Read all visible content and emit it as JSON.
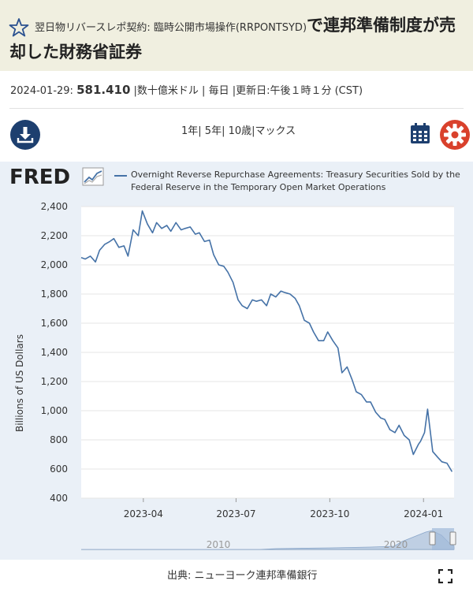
{
  "header": {
    "title_small": "翌日物リバースレポ契約: 臨時公開市場操作(RRPONTSYD)",
    "title_big_1": "で連邦準備制度が売",
    "title_big_2": "却した財務省証券"
  },
  "meta": {
    "date": "2024-01-29:",
    "value": "581.410",
    "rest": "|数十億米ドル | 毎日 |更新日:午後１時１分 (CST)"
  },
  "ranges": [
    "1年",
    "5年",
    "10歳",
    "マックス"
  ],
  "legend_label": "Overnight Reverse Repurchase Agreements: Treasury Securities Sold by the Federal Reserve in the Temporary Open Market Operations",
  "brand": "FRED",
  "source": "出典: ニューヨーク連邦準備銀行",
  "colors": {
    "series": "#4572a7",
    "header_bg": "#f0efe0",
    "brand_blue": "#1d3f6f",
    "accent_red": "#d9412c"
  },
  "icons": [
    "star-icon",
    "download-icon",
    "calendar-icon",
    "gear-icon",
    "fullscreen-icon"
  ],
  "chart_data": {
    "type": "line",
    "ylabel": "Billions of US Dollars",
    "ylim": [
      400,
      2400
    ],
    "yticks": [
      "2,400",
      "2,200",
      "2,000",
      "1,800",
      "1,600",
      "1,400",
      "1,200",
      "1,000",
      "800",
      "600",
      "400"
    ],
    "xticks": [
      "2023-04",
      "2023-07",
      "2023-10",
      "2024-01"
    ],
    "navigator_labels": [
      "2010",
      "2020"
    ],
    "series": [
      {
        "name": "Overnight Reverse Repurchase Agreements: Treasury Securities Sold by the Federal Reserve in the Temporary Open Market Operations",
        "x": [
          "2023-01-30",
          "2023-02-03",
          "2023-02-08",
          "2023-02-13",
          "2023-02-17",
          "2023-02-22",
          "2023-02-27",
          "2023-03-03",
          "2023-03-08",
          "2023-03-13",
          "2023-03-17",
          "2023-03-22",
          "2023-03-27",
          "2023-03-31",
          "2023-04-05",
          "2023-04-10",
          "2023-04-14",
          "2023-04-19",
          "2023-04-24",
          "2023-04-28",
          "2023-05-03",
          "2023-05-08",
          "2023-05-12",
          "2023-05-17",
          "2023-05-22",
          "2023-05-26",
          "2023-05-31",
          "2023-06-05",
          "2023-06-09",
          "2023-06-14",
          "2023-06-19",
          "2023-06-23",
          "2023-06-28",
          "2023-07-03",
          "2023-07-07",
          "2023-07-12",
          "2023-07-17",
          "2023-07-21",
          "2023-07-26",
          "2023-07-31",
          "2023-08-04",
          "2023-08-09",
          "2023-08-14",
          "2023-08-18",
          "2023-08-23",
          "2023-08-28",
          "2023-09-01",
          "2023-09-06",
          "2023-09-11",
          "2023-09-15",
          "2023-09-20",
          "2023-09-25",
          "2023-09-29",
          "2023-10-04",
          "2023-10-09",
          "2023-10-13",
          "2023-10-18",
          "2023-10-23",
          "2023-10-27",
          "2023-11-01",
          "2023-11-06",
          "2023-11-10",
          "2023-11-15",
          "2023-11-20",
          "2023-11-24",
          "2023-11-29",
          "2023-12-04",
          "2023-12-08",
          "2023-12-13",
          "2023-12-18",
          "2023-12-22",
          "2023-12-27",
          "2023-12-29",
          "2024-01-02",
          "2024-01-05",
          "2024-01-10",
          "2024-01-15",
          "2024-01-19",
          "2024-01-24",
          "2024-01-29"
        ],
        "values": [
          2050,
          2040,
          2060,
          2020,
          2100,
          2140,
          2160,
          2180,
          2120,
          2130,
          2060,
          2240,
          2200,
          2370,
          2280,
          2220,
          2290,
          2250,
          2270,
          2230,
          2290,
          2240,
          2250,
          2260,
          2210,
          2220,
          2160,
          2170,
          2070,
          2000,
          1990,
          1950,
          1880,
          1760,
          1720,
          1700,
          1760,
          1750,
          1760,
          1720,
          1800,
          1780,
          1820,
          1810,
          1800,
          1770,
          1720,
          1620,
          1600,
          1540,
          1480,
          1480,
          1540,
          1480,
          1430,
          1260,
          1300,
          1210,
          1130,
          1110,
          1060,
          1060,
          990,
          950,
          940,
          870,
          850,
          900,
          830,
          800,
          700,
          770,
          790,
          850,
          1010,
          720,
          680,
          650,
          640,
          581.41
        ]
      }
    ]
  }
}
